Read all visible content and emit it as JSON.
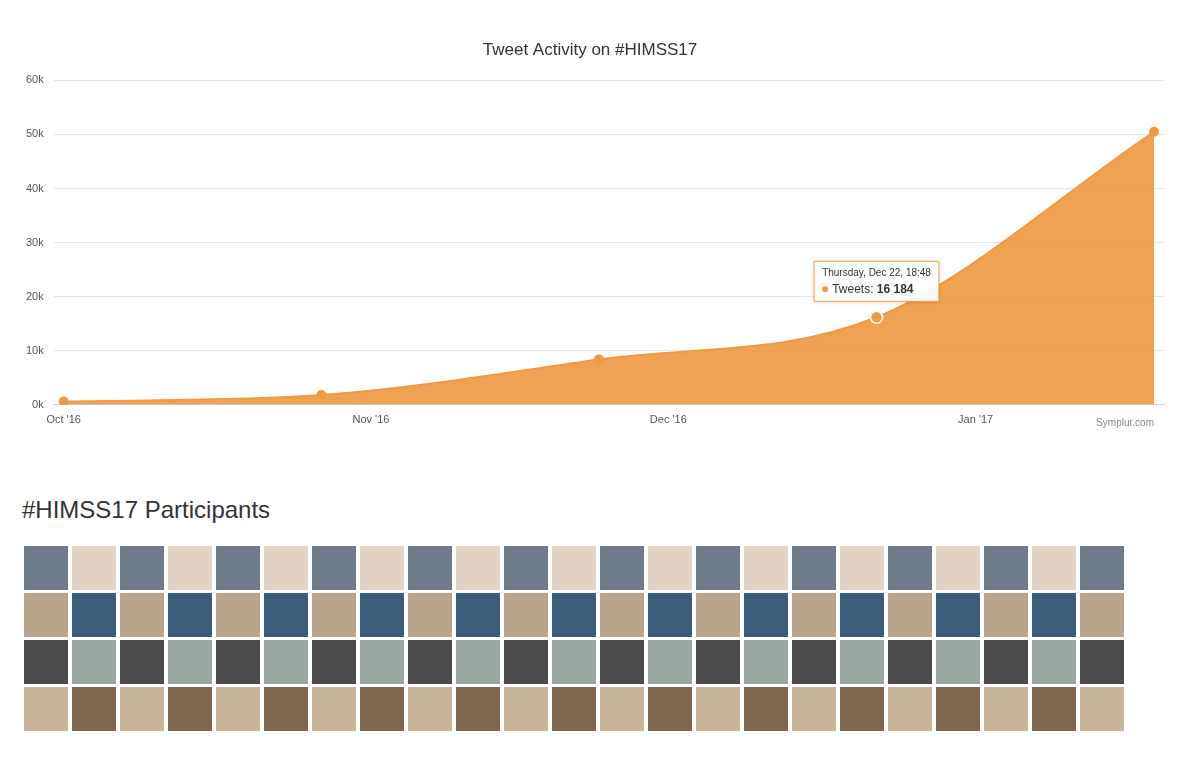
{
  "chart_data": {
    "type": "line",
    "title": "Tweet Activity on #HIMSS17",
    "source": "Symplur.com",
    "x": [
      "2016-10-01",
      "2016-10-27",
      "2016-11-24",
      "2016-12-22",
      "2017-01-19"
    ],
    "series": [
      {
        "name": "Tweets",
        "color": "#ee9a45",
        "values": [
          600,
          1800,
          8400,
          16184,
          50500
        ]
      }
    ],
    "xlim": [
      "2016-09-30",
      "2017-01-20"
    ],
    "xticks": [
      {
        "value": "2016-10-01",
        "label": "Oct '16"
      },
      {
        "value": "2016-11-01",
        "label": "Nov '16"
      },
      {
        "value": "2016-12-01",
        "label": "Dec '16"
      },
      {
        "value": "2017-01-01",
        "label": "Jan '17"
      }
    ],
    "ylim": [
      0,
      60000
    ],
    "yticks": [
      {
        "value": 0,
        "label": "0k"
      },
      {
        "value": 10000,
        "label": "10k"
      },
      {
        "value": 20000,
        "label": "20k"
      },
      {
        "value": 30000,
        "label": "30k"
      },
      {
        "value": 40000,
        "label": "40k"
      },
      {
        "value": 50000,
        "label": "50k"
      },
      {
        "value": 60000,
        "label": "60k"
      }
    ],
    "grid": true,
    "marker": "circle",
    "annotation": {
      "x": "2016-12-22",
      "y": 16184,
      "lines": [
        "Thursday, Dec 22, 18:48",
        "Tweets: 16 184"
      ]
    }
  },
  "participants": {
    "title": "#HIMSS17 Participants"
  }
}
